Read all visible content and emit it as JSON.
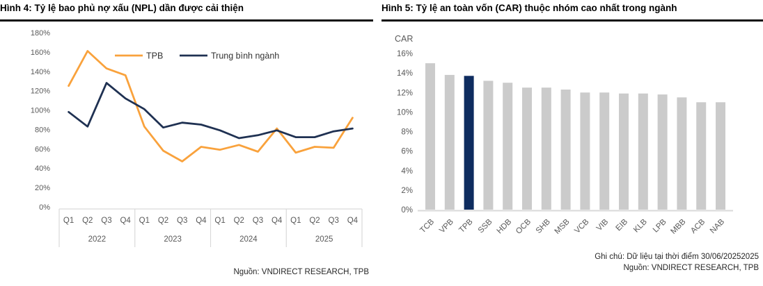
{
  "figure4": {
    "title": "Hình 4: Tỷ lệ bao phủ nợ xấu (NPL) dần được cải thiện",
    "source": "Nguồn: VNDIRECT RESEARCH, TPB"
  },
  "figure5": {
    "title": "Hình 5: Tỷ lệ an toàn vốn (CAR) thuộc nhóm cao nhất trong ngành",
    "note": "Ghi chú: Dữ liệu tại thời điểm 30/06/20252025",
    "source": "Nguồn: VNDIRECT RESEARCH, TPB"
  },
  "chart_data": [
    {
      "type": "line",
      "title": "Hình 4: Tỷ lệ bao phủ nợ xấu (NPL) dần được cải thiện",
      "years": [
        "2022",
        "2023",
        "2024",
        "2025"
      ],
      "quarters": [
        "Q1",
        "Q2",
        "Q3",
        "Q4"
      ],
      "unit": "%",
      "ylim": [
        0,
        180
      ],
      "ytick_step": 20,
      "grid": false,
      "legend_position": "top",
      "series": [
        {
          "name": "TPB",
          "color": "#F9A23C",
          "values": [
            125,
            161,
            143,
            136,
            83,
            58,
            47,
            62,
            59,
            64,
            57,
            81,
            56,
            62,
            61,
            92
          ]
        },
        {
          "name": "Trung bình ngành",
          "color": "#1F3152",
          "values": [
            98,
            83,
            128,
            112,
            101,
            82,
            87,
            85,
            79,
            71,
            74,
            79,
            72,
            72,
            78,
            81
          ]
        }
      ]
    },
    {
      "type": "bar",
      "title": "Hình 5: Tỷ lệ an toàn vốn (CAR) thuộc nhóm cao nhất trong ngành",
      "axis_title": "CAR",
      "unit": "%",
      "ylim": [
        0,
        16
      ],
      "ytick_step": 2,
      "grid": false,
      "bar_color": "#CBCBCB",
      "highlight": {
        "category": "TPB",
        "color": "#0E2C5F"
      },
      "categories": [
        "TCB",
        "VPB",
        "TPB",
        "SSB",
        "HDB",
        "OCB",
        "SHB",
        "MSB",
        "VCB",
        "VIB",
        "EIB",
        "KLB",
        "LPB",
        "MBB",
        "ACB",
        "NAB"
      ],
      "values": [
        15.0,
        13.8,
        13.7,
        13.2,
        13.0,
        12.5,
        12.5,
        12.3,
        12.0,
        12.0,
        11.9,
        11.9,
        11.8,
        11.5,
        11.0,
        11.0
      ]
    }
  ],
  "style": {
    "axis_label_color": "#595959",
    "axis_line_color": "#D9D9D9",
    "legend_text_color": "#333333"
  }
}
